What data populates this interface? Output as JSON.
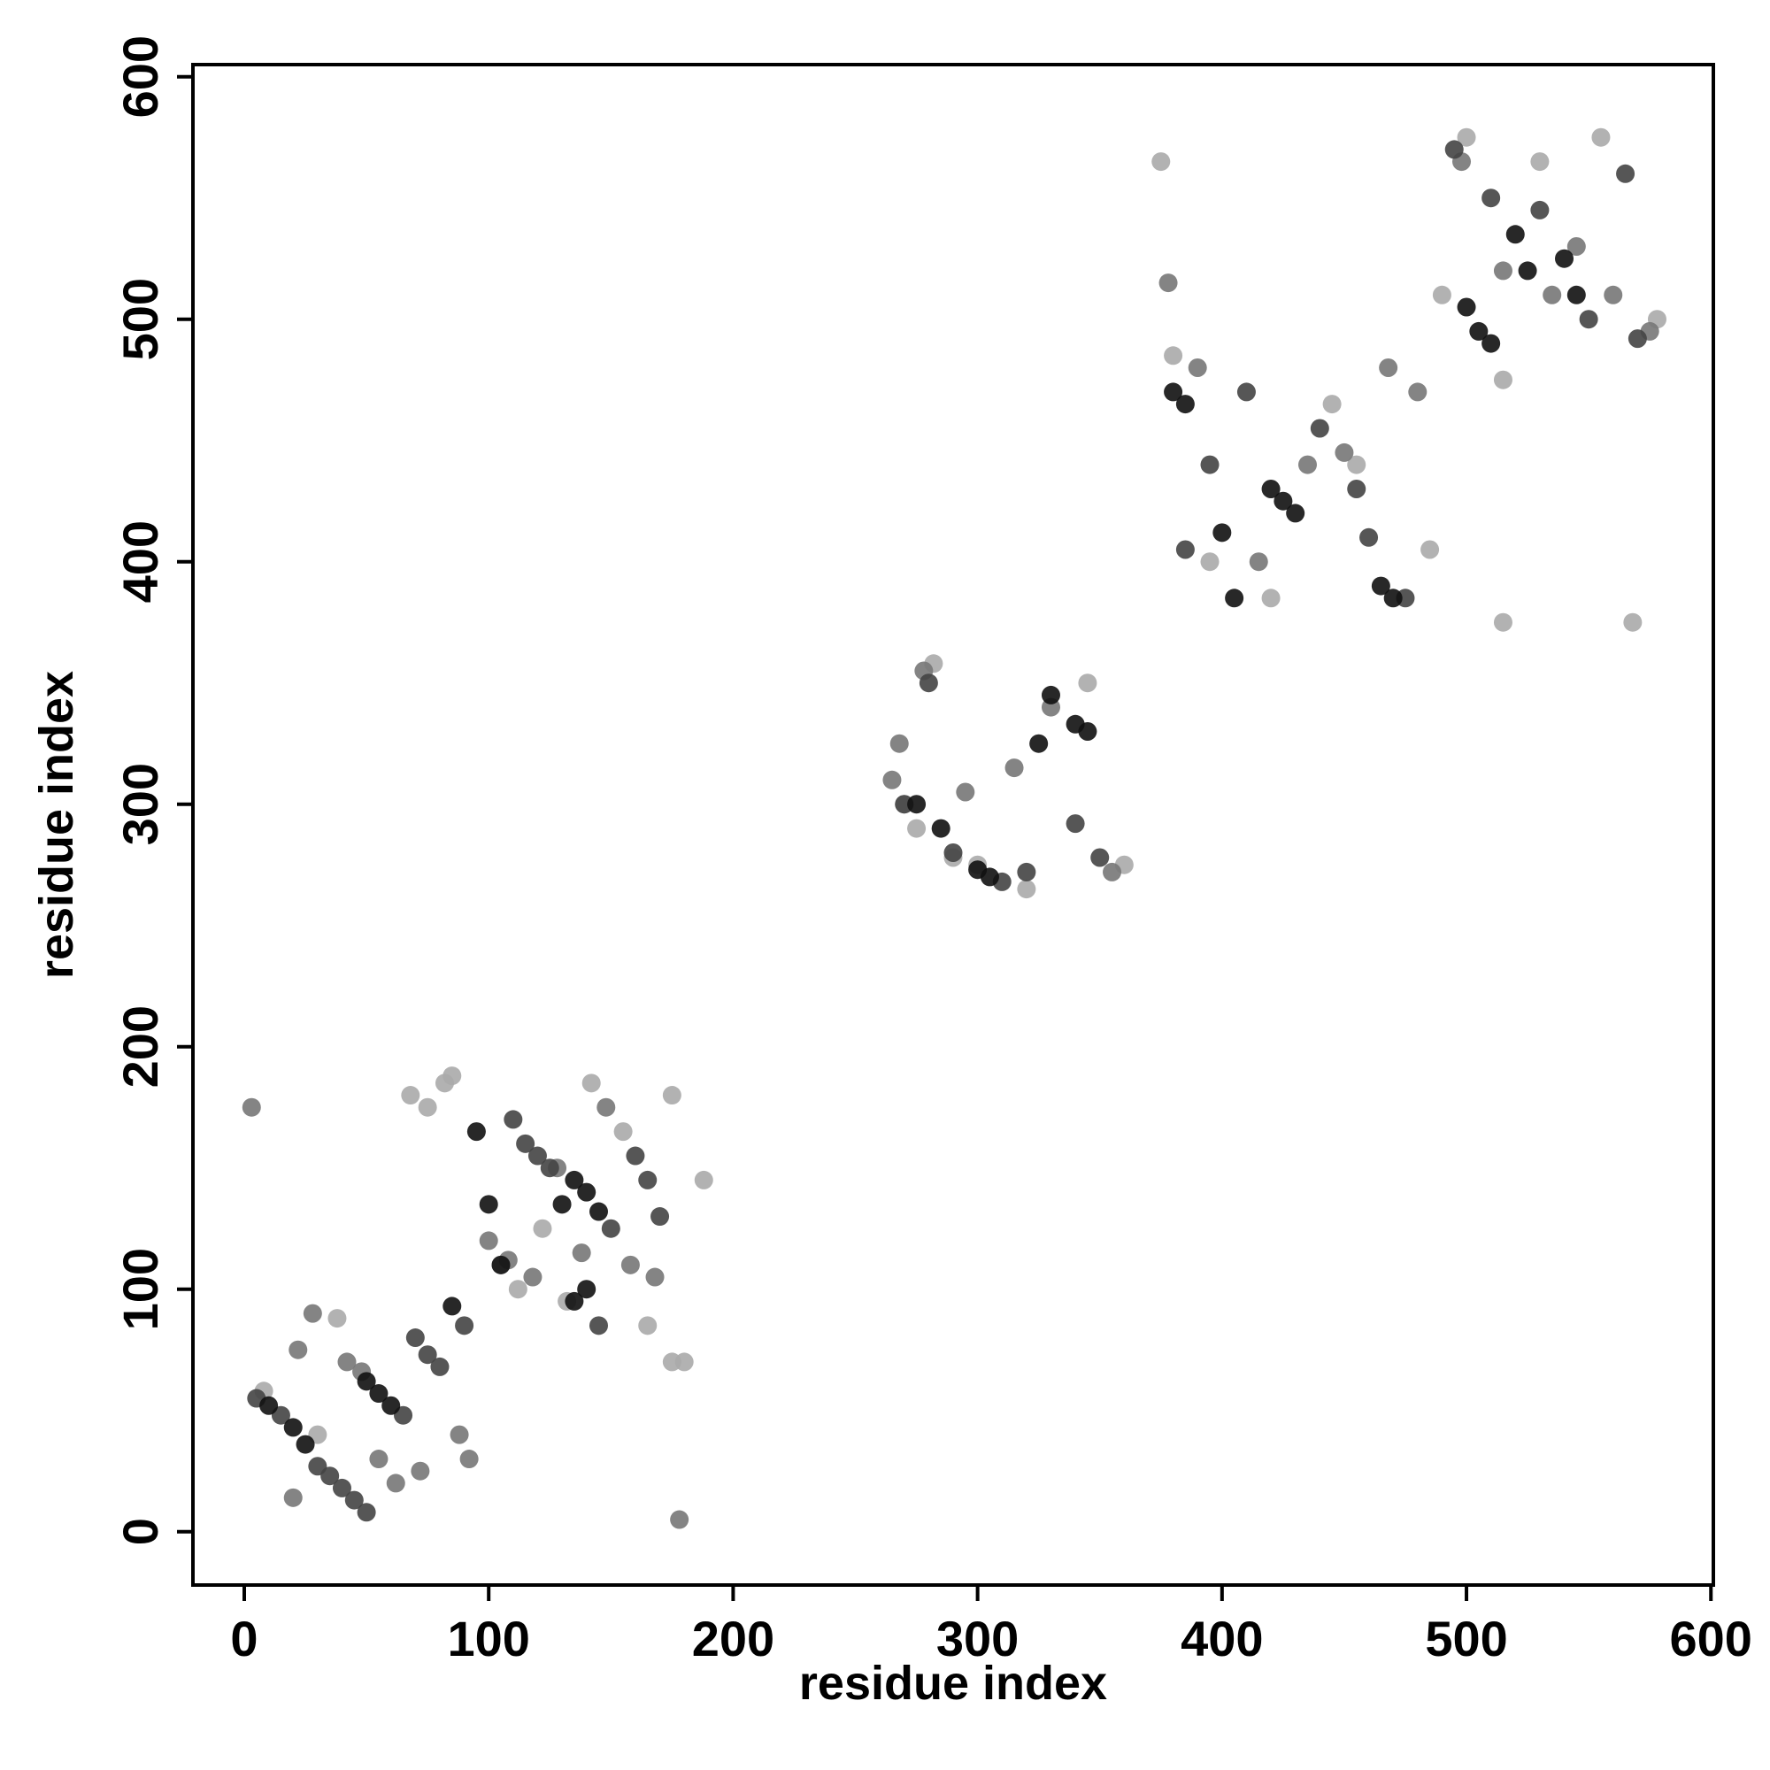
{
  "chart_data": {
    "type": "scatter",
    "xlabel": "residue index",
    "ylabel": "residue index",
    "xlim": [
      -21,
      601
    ],
    "ylim": [
      -22,
      605
    ],
    "xticks": [
      0,
      100,
      200,
      300,
      400,
      500,
      600
    ],
    "yticks": [
      0,
      100,
      200,
      300,
      400,
      500,
      600
    ],
    "series": [
      {
        "color": "#aaaaaa",
        "x": [
          8,
          30,
          38,
          68,
          75,
          82,
          85,
          105,
          112,
          122,
          132,
          142,
          155,
          165,
          175,
          180,
          188,
          175,
          270,
          275,
          282,
          290,
          300,
          320,
          345,
          360,
          375,
          380,
          395,
          420,
          445,
          455,
          485,
          490,
          500,
          515,
          530,
          555,
          568,
          578,
          515
        ],
        "values": [
          58,
          40,
          88,
          180,
          175,
          185,
          188,
          110,
          100,
          125,
          95,
          185,
          165,
          85,
          180,
          70,
          145,
          70,
          300,
          290,
          358,
          278,
          275,
          265,
          350,
          275,
          565,
          485,
          400,
          385,
          465,
          440,
          405,
          510,
          575,
          475,
          565,
          575,
          375,
          500,
          375
        ]
      },
      {
        "color": "#777777",
        "x": [
          3,
          22,
          28,
          42,
          48,
          55,
          62,
          72,
          88,
          92,
          100,
          108,
          118,
          128,
          138,
          148,
          158,
          168,
          178,
          268,
          265,
          278,
          295,
          315,
          330,
          355,
          378,
          390,
          415,
          435,
          450,
          468,
          480,
          498,
          515,
          535,
          545,
          560,
          575,
          20
        ],
        "values": [
          175,
          75,
          90,
          70,
          66,
          30,
          20,
          25,
          40,
          30,
          120,
          112,
          105,
          150,
          115,
          175,
          110,
          105,
          5,
          325,
          310,
          355,
          305,
          315,
          340,
          272,
          515,
          480,
          400,
          440,
          445,
          480,
          470,
          565,
          520,
          510,
          530,
          510,
          495,
          14
        ]
      },
      {
        "color": "#444444",
        "x": [
          5,
          15,
          30,
          35,
          40,
          45,
          50,
          65,
          70,
          75,
          80,
          90,
          110,
          115,
          120,
          125,
          150,
          160,
          165,
          170,
          145,
          280,
          270,
          290,
          310,
          320,
          340,
          350,
          395,
          410,
          440,
          455,
          460,
          475,
          495,
          510,
          530,
          550,
          565,
          570,
          385
        ],
        "values": [
          55,
          48,
          27,
          23,
          18,
          13,
          8,
          48,
          80,
          73,
          68,
          85,
          170,
          160,
          155,
          150,
          125,
          155,
          145,
          130,
          85,
          350,
          300,
          280,
          268,
          272,
          292,
          278,
          440,
          470,
          455,
          430,
          410,
          385,
          570,
          550,
          545,
          500,
          560,
          492,
          405
        ]
      },
      {
        "color": "#111111",
        "x": [
          10,
          20,
          25,
          50,
          55,
          60,
          85,
          95,
          100,
          130,
          135,
          140,
          145,
          135,
          140,
          105,
          380,
          385,
          400,
          405,
          420,
          425,
          430,
          465,
          470,
          500,
          505,
          510,
          520,
          525,
          540,
          545,
          300,
          305,
          330,
          340,
          345,
          285,
          325,
          275
        ],
        "values": [
          52,
          43,
          36,
          62,
          57,
          52,
          93,
          165,
          135,
          135,
          145,
          140,
          132,
          95,
          100,
          110,
          470,
          465,
          412,
          385,
          430,
          425,
          420,
          390,
          385,
          505,
          495,
          490,
          535,
          520,
          525,
          510,
          273,
          270,
          345,
          333,
          330,
          290,
          325,
          300
        ]
      }
    ]
  }
}
